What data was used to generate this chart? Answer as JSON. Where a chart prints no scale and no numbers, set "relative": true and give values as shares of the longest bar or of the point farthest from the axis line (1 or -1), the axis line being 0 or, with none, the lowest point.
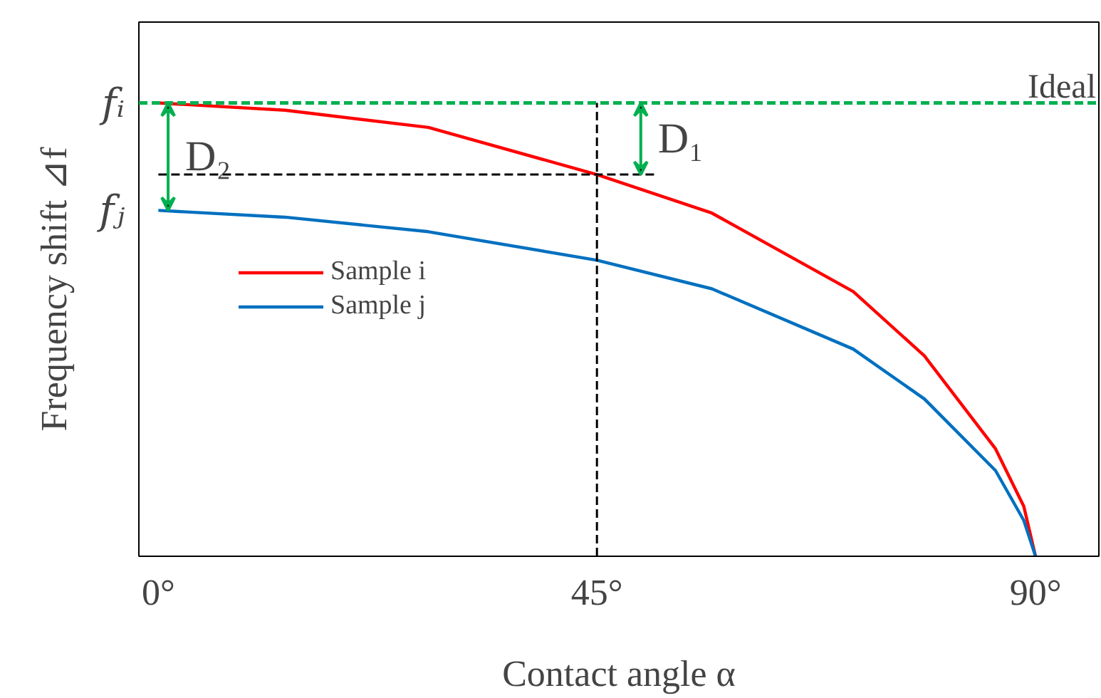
{
  "chart_data": {
    "type": "line",
    "relative": true,
    "xlabel": "Contact angle α",
    "ylabel": "Frequency shift ⊿f",
    "xlim": [
      -2,
      96.5
    ],
    "xticks": [
      {
        "value": 0,
        "label": "0°"
      },
      {
        "value": 45,
        "label": "45°"
      },
      {
        "value": 90,
        "label": "90°"
      }
    ],
    "series": [
      {
        "name": "Sample i",
        "color": "#ff0000",
        "x": [
          0,
          13,
          27.7,
          45,
          56.8,
          71.3,
          78.6,
          85.9,
          88.8,
          90
        ],
        "values": [
          1.0,
          0.984,
          0.946,
          0.842,
          0.757,
          0.584,
          0.442,
          0.237,
          0.11,
          0
        ]
      },
      {
        "name": "Sample j",
        "color": "#0070c0",
        "x": [
          0,
          13,
          27.7,
          45,
          56.8,
          71.3,
          78.6,
          85.9,
          88.8,
          90
        ],
        "values": [
          0.763,
          0.748,
          0.716,
          0.653,
          0.59,
          0.457,
          0.347,
          0.189,
          0.079,
          0
        ]
      },
      {
        "color": "#000000",
        "line_style": "dashed",
        "x": [
          45,
          45
        ],
        "values": [
          0,
          1
        ]
      },
      {
        "color": "#000000",
        "line_style": "dashed",
        "x": [
          0,
          51.2
        ],
        "values": [
          0.842,
          0.842
        ]
      }
    ],
    "ref_lines": [
      {
        "axis": "y",
        "value": 1,
        "label": "Ideal",
        "color": "#00b050",
        "line_style": "dashed"
      }
    ],
    "annotations": [
      "D₂",
      "D₁",
      {
        "text": "fᵢ",
        "x": 0,
        "y": 1
      },
      {
        "text": "fⱼ",
        "x": 0,
        "y": 0.763
      }
    ],
    "legend": "left",
    "grid": false
  }
}
